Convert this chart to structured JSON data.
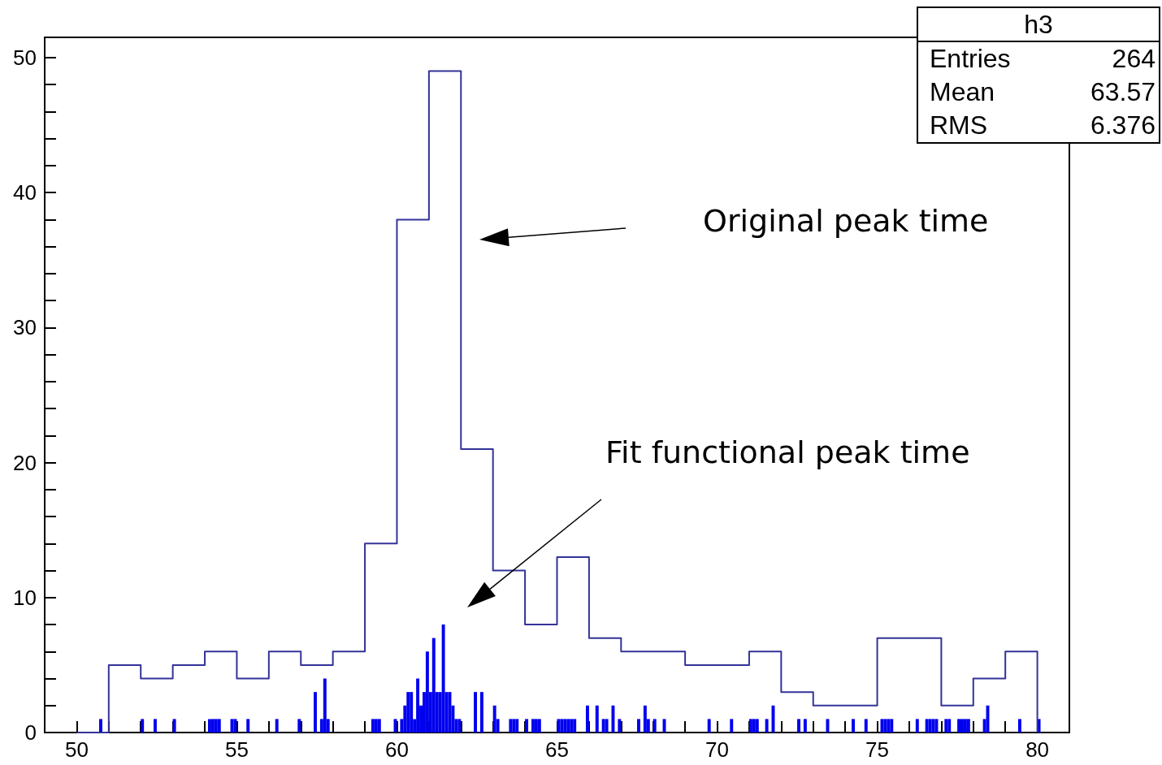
{
  "chart_data": {
    "type": "step",
    "xlim": [
      49,
      81
    ],
    "ylim": [
      0,
      51.5
    ],
    "xticks": [
      {
        "value": 49,
        "label": null
      },
      50,
      {
        "value": 51,
        "label": null
      },
      {
        "value": 52,
        "label": null
      },
      {
        "value": 53,
        "label": null
      },
      {
        "value": 54,
        "label": null
      },
      55,
      {
        "value": 56,
        "label": null
      },
      {
        "value": 57,
        "label": null
      },
      {
        "value": 58,
        "label": null
      },
      {
        "value": 59,
        "label": null
      },
      60,
      {
        "value": 61,
        "label": null
      },
      {
        "value": 62,
        "label": null
      },
      {
        "value": 63,
        "label": null
      },
      {
        "value": 64,
        "label": null
      },
      65,
      {
        "value": 66,
        "label": null
      },
      {
        "value": 67,
        "label": null
      },
      {
        "value": 68,
        "label": null
      },
      {
        "value": 69,
        "label": null
      },
      70,
      {
        "value": 71,
        "label": null
      },
      {
        "value": 72,
        "label": null
      },
      {
        "value": 73,
        "label": null
      },
      {
        "value": 74,
        "label": null
      },
      75,
      {
        "value": 76,
        "label": null
      },
      {
        "value": 77,
        "label": null
      },
      {
        "value": 78,
        "label": null
      },
      {
        "value": 79,
        "label": null
      },
      80,
      {
        "value": 81,
        "label": null
      }
    ],
    "yticks": [
      0,
      {
        "value": 2,
        "label": null
      },
      {
        "value": 4,
        "label": null
      },
      {
        "value": 6,
        "label": null
      },
      {
        "value": 8,
        "label": null
      },
      10,
      {
        "value": 12,
        "label": null
      },
      {
        "value": 14,
        "label": null
      },
      {
        "value": 16,
        "label": null
      },
      {
        "value": 18,
        "label": null
      },
      20,
      {
        "value": 22,
        "label": null
      },
      {
        "value": 24,
        "label": null
      },
      {
        "value": 26,
        "label": null
      },
      {
        "value": 28,
        "label": null
      },
      30,
      {
        "value": 32,
        "label": null
      },
      {
        "value": 34,
        "label": null
      },
      {
        "value": 36,
        "label": null
      },
      {
        "value": 38,
        "label": null
      },
      40,
      {
        "value": 42,
        "label": null
      },
      {
        "value": 44,
        "label": null
      },
      {
        "value": 46,
        "label": null
      },
      {
        "value": 48,
        "label": null
      },
      50
    ],
    "grid": false,
    "annotations": [
      "h3",
      "Entries",
      "264",
      "Mean",
      "63.57",
      "RMS",
      "6.376",
      "Original peak time",
      "Fit functional peak time"
    ],
    "series": [
      {
        "color": "#333399",
        "x": [
          50,
          51,
          52,
          53,
          54,
          55,
          56,
          57,
          58,
          59,
          60,
          61,
          62,
          63,
          64,
          65,
          66,
          67,
          68,
          69,
          70,
          71,
          72,
          73,
          74,
          75,
          76,
          77,
          78,
          79,
          80
        ],
        "values": [
          0,
          5,
          4,
          5,
          6,
          4,
          6,
          5,
          6,
          14,
          38,
          49,
          21,
          12,
          8,
          13,
          7,
          6,
          6,
          5,
          5,
          6,
          3,
          2,
          2,
          7,
          7,
          2,
          4,
          6,
          0
        ]
      },
      {
        "type": "bar",
        "color": "#0000ee",
        "x": [
          50.75,
          52.05,
          52.45,
          53.05,
          54.15,
          54.25,
          54.35,
          54.45,
          54.85,
          54.95,
          55.35,
          56.25,
          56.95,
          57.45,
          57.65,
          57.75,
          57.85,
          59.25,
          59.35,
          59.45,
          59.95,
          60.15,
          60.25,
          60.35,
          60.45,
          60.55,
          60.65,
          60.75,
          60.85,
          60.95,
          61.05,
          61.15,
          61.25,
          61.35,
          61.45,
          61.55,
          61.65,
          61.75,
          61.85,
          61.95,
          62.45,
          62.65,
          63.05,
          63.15,
          63.55,
          63.65,
          63.75,
          64.05,
          64.25,
          64.35,
          64.45,
          65.05,
          65.15,
          65.25,
          65.35,
          65.45,
          65.55,
          65.95,
          66.25,
          66.45,
          66.55,
          66.75,
          66.95,
          67.55,
          67.75,
          67.85,
          68.05,
          68.35,
          69.75,
          70.45,
          71.05,
          71.15,
          71.25,
          71.55,
          71.75,
          72.55,
          72.75,
          73.45,
          74.25,
          74.65,
          75.15,
          75.25,
          75.35,
          75.45,
          76.25,
          76.55,
          76.65,
          76.75,
          76.85,
          77.15,
          77.25,
          77.55,
          77.65,
          77.75,
          77.85,
          78.35,
          78.45,
          79.45,
          80.05
        ],
        "values": [
          1,
          1,
          1,
          1,
          1,
          1,
          1,
          1,
          1,
          1,
          1,
          1,
          1,
          3,
          1,
          4,
          1,
          1,
          1,
          1,
          1,
          1,
          2,
          3,
          3,
          1,
          4,
          2,
          3,
          6,
          3,
          7,
          3,
          3,
          8,
          3,
          3,
          2,
          1,
          1,
          3,
          3,
          2,
          1,
          1,
          1,
          1,
          1,
          1,
          1,
          1,
          1,
          1,
          1,
          1,
          1,
          1,
          2,
          2,
          1,
          1,
          2,
          1,
          1,
          2,
          1,
          1,
          1,
          1,
          1,
          1,
          1,
          1,
          1,
          2,
          1,
          1,
          1,
          1,
          1,
          1,
          1,
          1,
          1,
          1,
          1,
          1,
          1,
          1,
          1,
          1,
          1,
          1,
          1,
          1,
          1,
          2,
          1,
          1
        ]
      }
    ]
  }
}
